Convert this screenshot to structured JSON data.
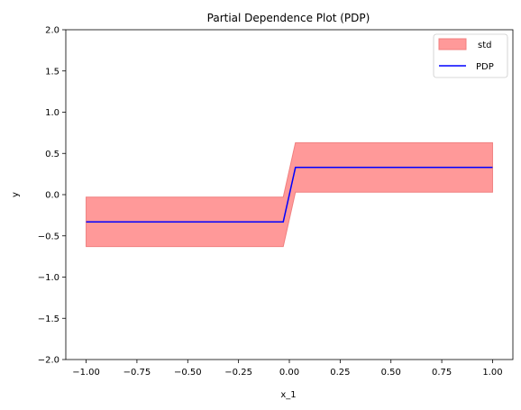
{
  "chart_data": {
    "type": "line",
    "title": "Partial Dependence Plot (PDP)",
    "xlabel": "x_1",
    "ylabel": "y",
    "xlim": [
      -1.1,
      1.1
    ],
    "ylim": [
      -2.0,
      2.0
    ],
    "x_ticks": [
      -1.0,
      -0.75,
      -0.5,
      -0.25,
      0.0,
      0.25,
      0.5,
      0.75,
      1.0
    ],
    "x_tick_labels": [
      "−1.00",
      "−0.75",
      "−0.50",
      "−0.25",
      "0.00",
      "0.25",
      "0.50",
      "0.75",
      "1.00"
    ],
    "y_ticks": [
      -2.0,
      -1.5,
      -1.0,
      -0.5,
      0.0,
      0.5,
      1.0,
      1.5,
      2.0
    ],
    "y_tick_labels": [
      "−2.0",
      "−1.5",
      "−1.0",
      "−0.5",
      "0.0",
      "0.5",
      "1.0",
      "1.5",
      "2.0"
    ],
    "grid": false,
    "legend_position": "top-right",
    "legend": [
      {
        "label": "std",
        "kind": "patch",
        "color": "#ff9999",
        "edge": "#f08080"
      },
      {
        "label": "PDP",
        "kind": "line",
        "color": "#0000ff"
      }
    ],
    "series": [
      {
        "name": "PDP",
        "kind": "line",
        "color": "#0000ff",
        "x": [
          -1.0,
          -0.03,
          0.03,
          1.0
        ],
        "y": [
          -0.33,
          -0.33,
          0.33,
          0.33
        ]
      },
      {
        "name": "std",
        "kind": "band",
        "color": "#ff9999",
        "x": [
          -1.0,
          -0.03,
          0.03,
          1.0
        ],
        "lower": [
          -0.63,
          -0.63,
          0.03,
          0.03
        ],
        "upper": [
          -0.03,
          -0.03,
          0.63,
          0.63
        ]
      }
    ]
  }
}
